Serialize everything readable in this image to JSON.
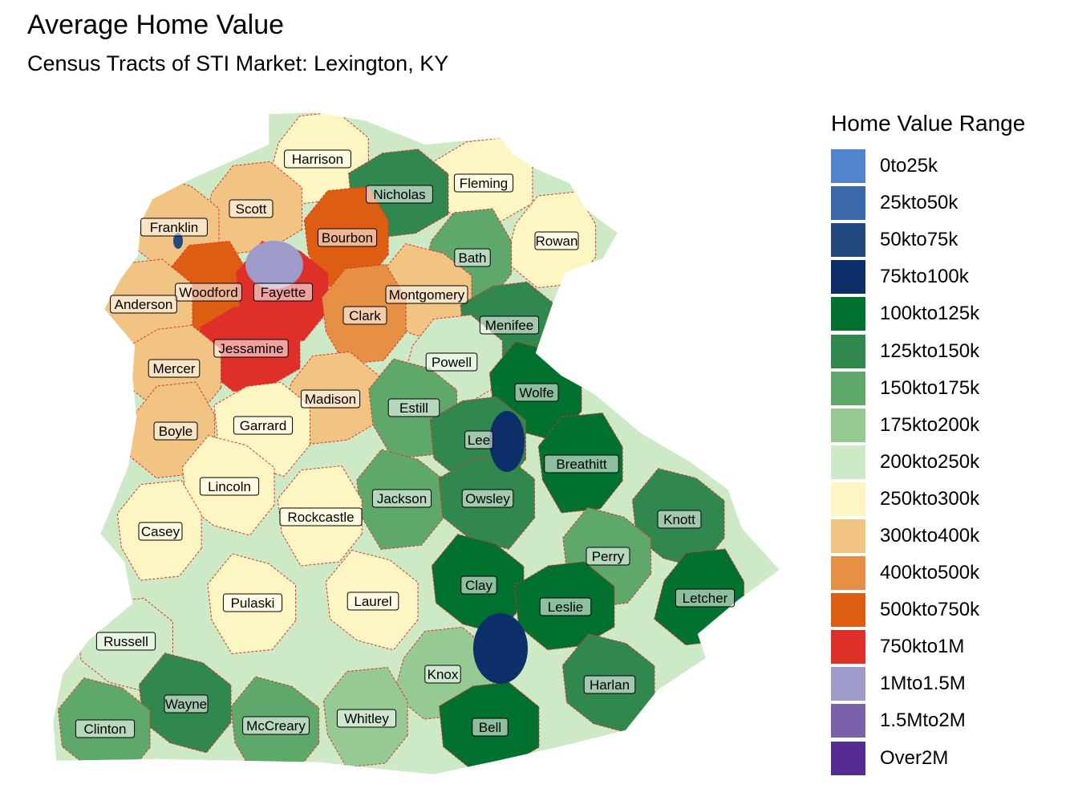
{
  "title": "Average Home Value",
  "subtitle": "Census Tracts of STI Market: Lexington, KY",
  "legend": {
    "title": "Home Value Range",
    "items": [
      {
        "label": "0to25k",
        "color": "#5283cd"
      },
      {
        "label": "25kto50k",
        "color": "#3a69a9"
      },
      {
        "label": "50kto75k",
        "color": "#23497f"
      },
      {
        "label": "75kto100k",
        "color": "#0c2f69"
      },
      {
        "label": "100kto125k",
        "color": "#00712e"
      },
      {
        "label": "125kto150k",
        "color": "#31884e"
      },
      {
        "label": "150kto175k",
        "color": "#5fa86c"
      },
      {
        "label": "175kto200k",
        "color": "#96ca94"
      },
      {
        "label": "200kto250k",
        "color": "#cde9c6"
      },
      {
        "label": "250kto300k",
        "color": "#fef6c2"
      },
      {
        "label": "300kto400k",
        "color": "#f2c484"
      },
      {
        "label": "400kto500k",
        "color": "#e69045"
      },
      {
        "label": "500kto750k",
        "color": "#dd5d12"
      },
      {
        "label": "750kto1M",
        "color": "#df2f29"
      },
      {
        "label": "1Mto1.5M",
        "color": "#9e9bcb"
      },
      {
        "label": "1.5Mto2M",
        "color": "#7a61ac"
      },
      {
        "label": "Over2M",
        "color": "#572c92"
      }
    ]
  },
  "counties": [
    {
      "name": "Harrison",
      "value_range": "250kto300k"
    },
    {
      "name": "Fleming",
      "value_range": "250kto300k"
    },
    {
      "name": "Nicholas",
      "value_range": "125kto150k"
    },
    {
      "name": "Scott",
      "value_range": "300kto400k"
    },
    {
      "name": "Franklin",
      "value_range": "300kto400k"
    },
    {
      "name": "Bourbon",
      "value_range": "500kto750k"
    },
    {
      "name": "Rowan",
      "value_range": "250kto300k"
    },
    {
      "name": "Bath",
      "value_range": "150kto175k"
    },
    {
      "name": "Woodford",
      "value_range": "500kto750k"
    },
    {
      "name": "Fayette",
      "value_range": "750kto1M"
    },
    {
      "name": "Montgomery",
      "value_range": "300kto400k"
    },
    {
      "name": "Anderson",
      "value_range": "300kto400k"
    },
    {
      "name": "Clark",
      "value_range": "400kto500k"
    },
    {
      "name": "Menifee",
      "value_range": "125kto150k"
    },
    {
      "name": "Jessamine",
      "value_range": "750kto1M"
    },
    {
      "name": "Mercer",
      "value_range": "300kto400k"
    },
    {
      "name": "Powell",
      "value_range": "200kto250k"
    },
    {
      "name": "Wolfe",
      "value_range": "100kto125k"
    },
    {
      "name": "Madison",
      "value_range": "300kto400k"
    },
    {
      "name": "Estill",
      "value_range": "150kto175k"
    },
    {
      "name": "Boyle",
      "value_range": "300kto400k"
    },
    {
      "name": "Garrard",
      "value_range": "250kto300k"
    },
    {
      "name": "Lee",
      "value_range": "125kto150k"
    },
    {
      "name": "Breathitt",
      "value_range": "100kto125k"
    },
    {
      "name": "Lincoln",
      "value_range": "250kto300k"
    },
    {
      "name": "Jackson",
      "value_range": "150kto175k"
    },
    {
      "name": "Owsley",
      "value_range": "125kto150k"
    },
    {
      "name": "Rockcastle",
      "value_range": "250kto300k"
    },
    {
      "name": "Knott",
      "value_range": "125kto150k"
    },
    {
      "name": "Casey",
      "value_range": "250kto300k"
    },
    {
      "name": "Perry",
      "value_range": "150kto175k"
    },
    {
      "name": "Clay",
      "value_range": "100kto125k"
    },
    {
      "name": "Pulaski",
      "value_range": "250kto300k"
    },
    {
      "name": "Laurel",
      "value_range": "250kto300k"
    },
    {
      "name": "Leslie",
      "value_range": "100kto125k"
    },
    {
      "name": "Letcher",
      "value_range": "100kto125k"
    },
    {
      "name": "Russell",
      "value_range": "200kto250k"
    },
    {
      "name": "Knox",
      "value_range": "175kto200k"
    },
    {
      "name": "Harlan",
      "value_range": "125kto150k"
    },
    {
      "name": "Wayne",
      "value_range": "125kto150k"
    },
    {
      "name": "Whitley",
      "value_range": "175kto200k"
    },
    {
      "name": "Bell",
      "value_range": "100kto125k"
    },
    {
      "name": "McCreary",
      "value_range": "150kto175k"
    },
    {
      "name": "Clinton",
      "value_range": "150kto175k"
    }
  ],
  "tract_colors": {
    "Lee": "75kto100k",
    "Clay": "75kto100k",
    "Franklin": "50kto75k",
    "Fayette": "1Mto1.5M"
  }
}
